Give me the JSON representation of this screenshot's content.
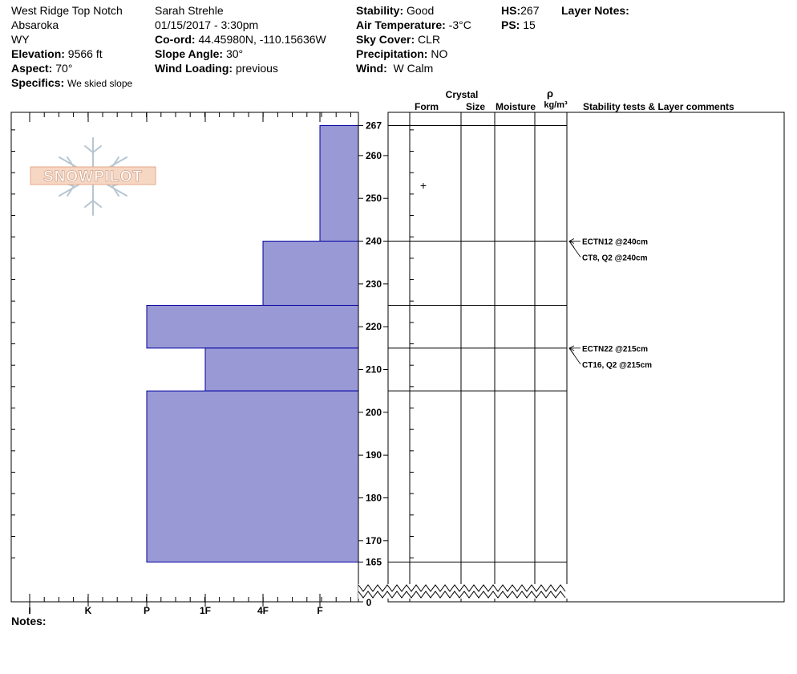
{
  "header": {
    "col1": {
      "location": "West Ridge Top Notch",
      "range": "Absaroka",
      "state": "WY",
      "elevation_label": "Elevation:",
      "elevation_value": "9566 ft",
      "aspect_label": "Aspect:",
      "aspect_value": "70°",
      "specifics_label": "Specifics:",
      "specifics_value": "We skied slope"
    },
    "col2": {
      "observer": "Sarah Strehle",
      "datetime": "01/15/2017 - 3:30pm",
      "coord_label": "Co-ord:",
      "coord_value": "44.45980N, -110.15636W",
      "slope_label": "Slope Angle:",
      "slope_value": "30°",
      "wind_loading_label": "Wind Loading:",
      "wind_loading_value": "previous"
    },
    "col3": {
      "stability_label": "Stability:",
      "stability_value": "Good",
      "air_temp_label": "Air Temperature:",
      "air_temp_value": "-3°C",
      "sky_label": "Sky Cover:",
      "sky_value": "CLR",
      "precip_label": "Precipitation:",
      "precip_value": "NO",
      "wind_label": "Wind:",
      "wind_value": "W Calm"
    },
    "col4": {
      "hs_label": "HS:",
      "hs_value": "267",
      "ps_label": "PS:",
      "ps_value": "15"
    },
    "layer_notes_label": "Layer Notes:",
    "notes_label": "Notes:"
  },
  "logo_text": "SNOWPILOT",
  "table_headers": {
    "crystal": "Crystal",
    "form": "Form",
    "size": "Size",
    "moisture": "Moisture",
    "rho": "ρ",
    "density_unit": "kg/m³",
    "comments": "Stability tests & Layer comments"
  },
  "chart_data": {
    "type": "bar",
    "orientation": "horizontal",
    "x_axis_categories": [
      "I",
      "K",
      "P",
      "1F",
      "4F",
      "F"
    ],
    "x_axis_direction": "harder to the left",
    "y_axis": {
      "ticks": [
        170,
        180,
        190,
        200,
        210,
        220,
        230,
        240,
        250,
        260
      ],
      "extra_labels": [
        0,
        165,
        267
      ],
      "range": [
        163,
        269
      ],
      "axis_break_below": 165
    },
    "layers": [
      {
        "bottom": 240,
        "top": 267,
        "hardness": "F"
      },
      {
        "bottom": 225,
        "top": 240,
        "hardness": "4F"
      },
      {
        "bottom": 215,
        "top": 225,
        "hardness": "P"
      },
      {
        "bottom": 205,
        "top": 215,
        "hardness": "1F"
      },
      {
        "bottom": 165,
        "top": 205,
        "hardness": "P"
      }
    ],
    "layer_boundaries": [
      267,
      240,
      225,
      215,
      205,
      165
    ],
    "crystal_form_symbols": [
      {
        "depth": 253,
        "symbol": "+"
      }
    ],
    "stability_tests": [
      {
        "depth": 240,
        "label": "ECTN12 @240cm"
      },
      {
        "depth": 240,
        "label": "CT8, Q2 @240cm"
      },
      {
        "depth": 215,
        "label": "ECTN22 @215cm"
      },
      {
        "depth": 215,
        "label": "CT16, Q2 @215cm"
      }
    ],
    "colors": {
      "bar_fill": "#9999d6",
      "bar_stroke": "#0000a0"
    }
  }
}
